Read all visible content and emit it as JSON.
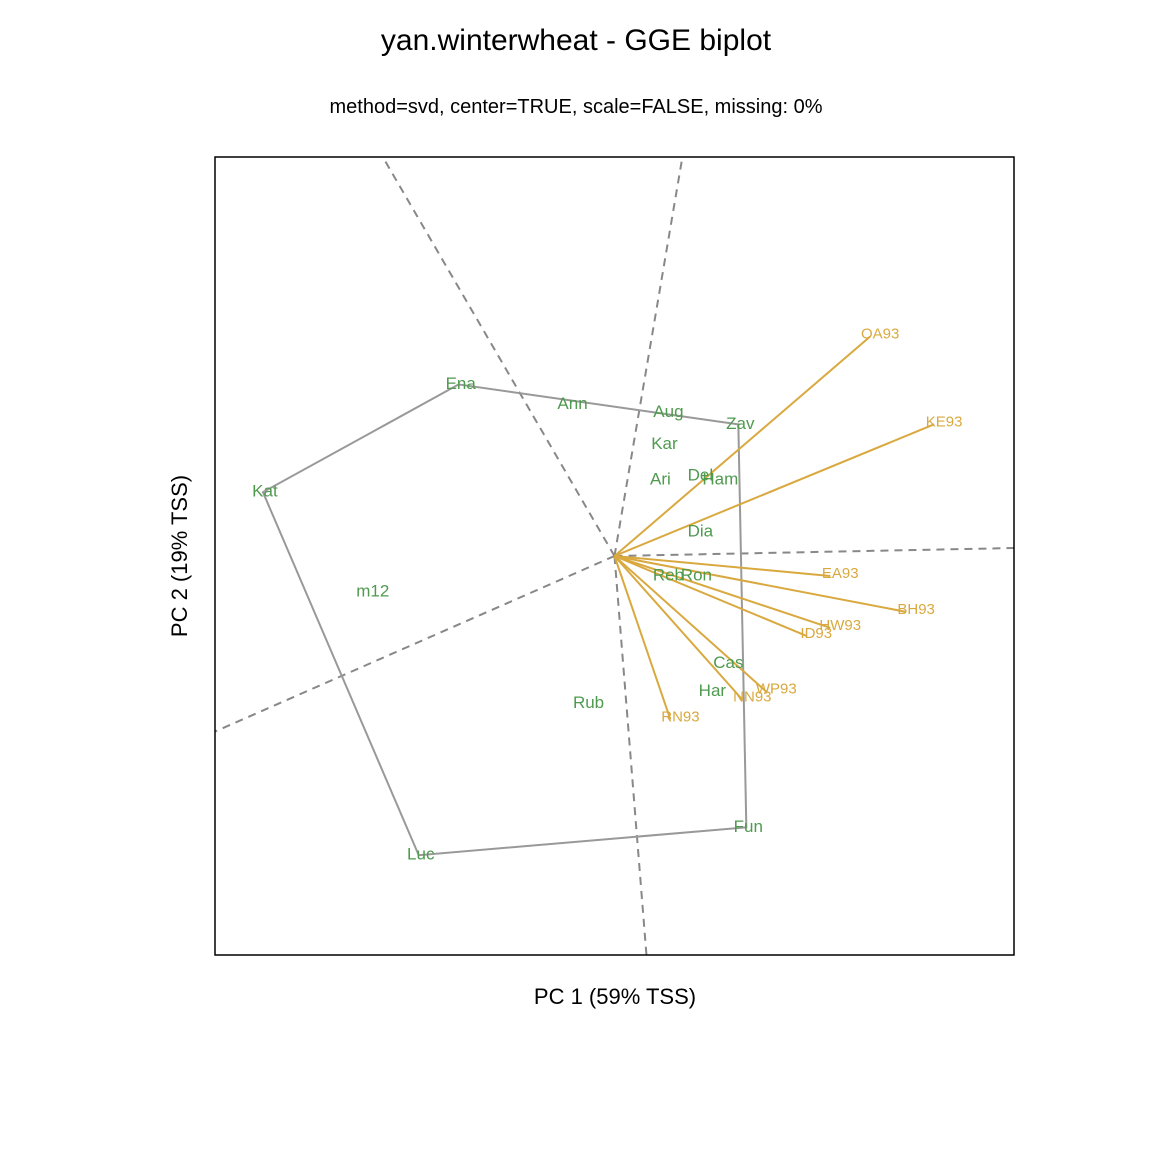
{
  "chart_data": {
    "type": "scatter",
    "title": "yan.winterwheat - GGE biplot",
    "subtitle": "method=svd, center=TRUE, scale=FALSE, missing: 0%",
    "xlabel": "PC 1 (59% TSS)",
    "ylabel": "PC 2 (19% TSS)",
    "xlim": [
      -1.0,
      1.0
    ],
    "ylim": [
      -1.0,
      1.0
    ],
    "grid": false,
    "legend": "none",
    "colors": {
      "genotype": "#4f9a4f",
      "environment": "#d9a93f",
      "hull": "#999999",
      "sector": "#888888",
      "frame": "#000000"
    },
    "origin": [
      0.0,
      0.0
    ],
    "genotypes": [
      {
        "label": "Ann",
        "x": -0.11,
        "y": 0.38
      },
      {
        "label": "Ari",
        "x": 0.11,
        "y": 0.19
      },
      {
        "label": "Aug",
        "x": 0.13,
        "y": 0.36
      },
      {
        "label": "Cas",
        "x": 0.28,
        "y": -0.27
      },
      {
        "label": "Del",
        "x": 0.21,
        "y": 0.2
      },
      {
        "label": "Dia",
        "x": 0.21,
        "y": 0.06
      },
      {
        "label": "Ena",
        "x": -0.39,
        "y": 0.43
      },
      {
        "label": "Fun",
        "x": 0.33,
        "y": -0.68
      },
      {
        "label": "Ham",
        "x": 0.26,
        "y": 0.19
      },
      {
        "label": "Har",
        "x": 0.24,
        "y": -0.34
      },
      {
        "label": "Kar",
        "x": 0.12,
        "y": 0.28
      },
      {
        "label": "Kat",
        "x": -0.88,
        "y": 0.16
      },
      {
        "label": "Luc",
        "x": -0.49,
        "y": -0.75
      },
      {
        "label": "m12",
        "x": -0.61,
        "y": -0.09
      },
      {
        "label": "Reb",
        "x": 0.13,
        "y": -0.05
      },
      {
        "label": "Ron",
        "x": 0.2,
        "y": -0.05
      },
      {
        "label": "Rub",
        "x": -0.07,
        "y": -0.37
      },
      {
        "label": "Zav",
        "x": 0.31,
        "y": 0.33
      }
    ],
    "environments": [
      {
        "label": "BH93",
        "x": 0.73,
        "y": -0.14
      },
      {
        "label": "EA93",
        "x": 0.54,
        "y": -0.05
      },
      {
        "label": "HW93",
        "x": 0.54,
        "y": -0.18
      },
      {
        "label": "ID93",
        "x": 0.48,
        "y": -0.2
      },
      {
        "label": "KE93",
        "x": 0.8,
        "y": 0.33
      },
      {
        "label": "NN93",
        "x": 0.32,
        "y": -0.36
      },
      {
        "label": "OA93",
        "x": 0.64,
        "y": 0.55
      },
      {
        "label": "RN93",
        "x": 0.14,
        "y": -0.41
      },
      {
        "label": "WP93",
        "x": 0.38,
        "y": -0.34
      }
    ],
    "hull": [
      "Ena",
      "Zav",
      "Fun",
      "Luc",
      "Kat"
    ],
    "sector_lines": [
      {
        "x": -0.58,
        "y": 1.0
      },
      {
        "x": 0.17,
        "y": 1.0
      },
      {
        "x": 1.0,
        "y": 0.02
      },
      {
        "x": 0.08,
        "y": -1.0
      },
      {
        "x": -1.0,
        "y": -0.44
      }
    ]
  }
}
